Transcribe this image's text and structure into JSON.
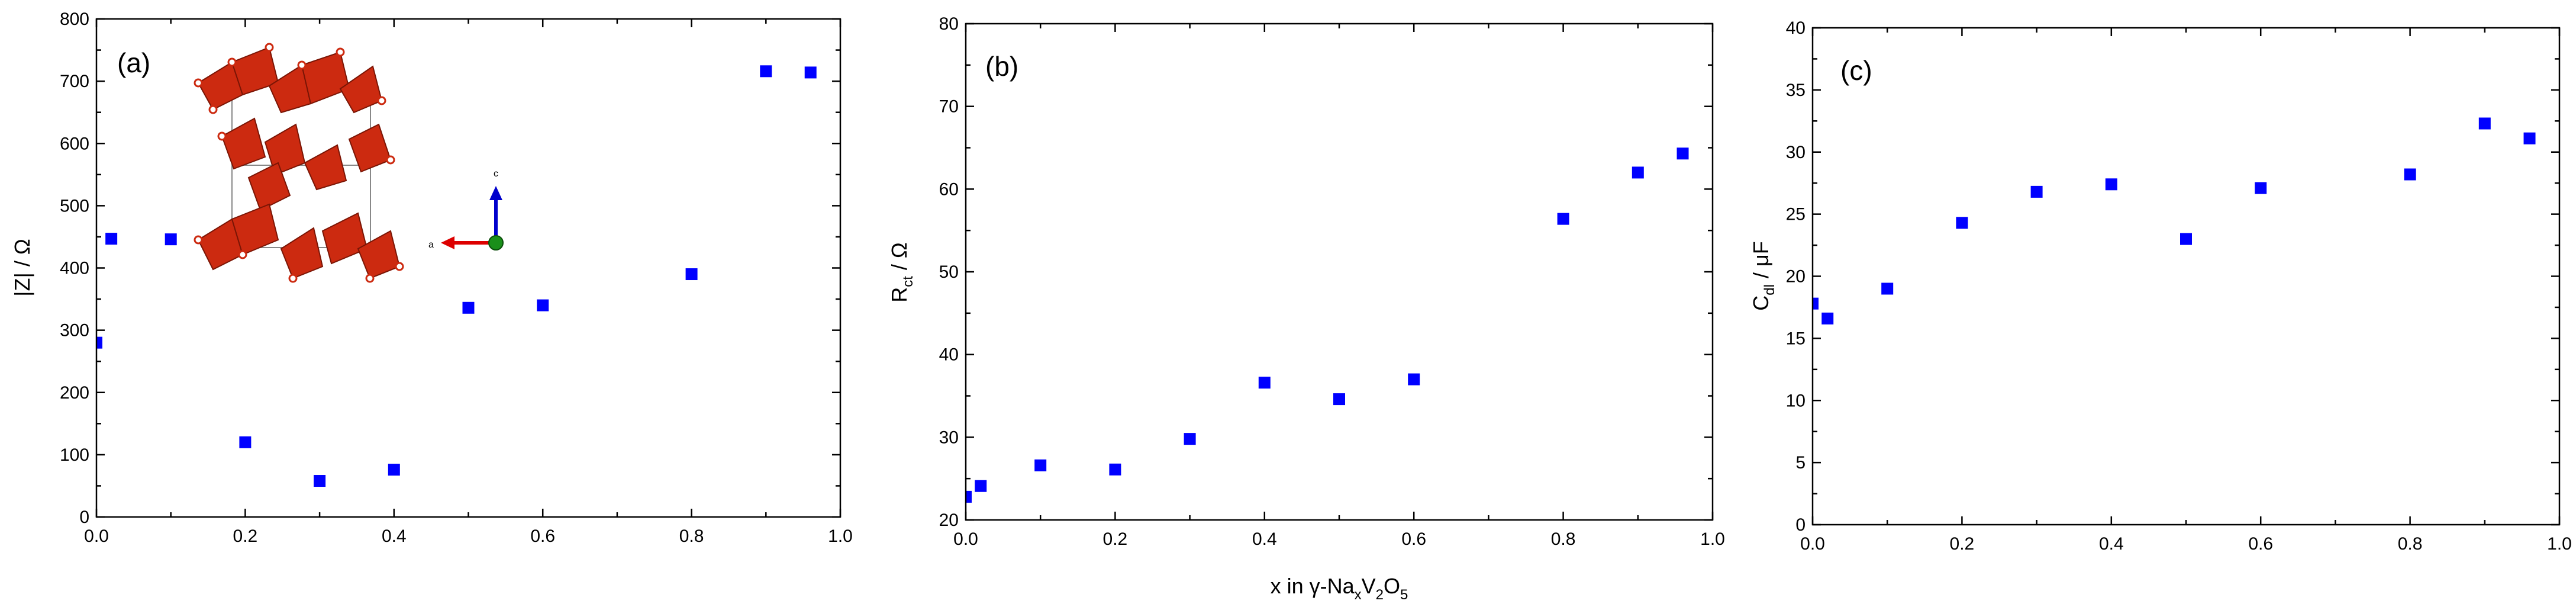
{
  "chart_data": [
    {
      "type": "scatter",
      "panel_label": "(a)",
      "ylabel": "|Z| / Ω",
      "xlabel": "",
      "xlim": [
        0,
        1.0
      ],
      "ylim": [
        0,
        800
      ],
      "xticks": [
        "0.0",
        "0.2",
        "0.4",
        "0.6",
        "0.8",
        "1.0"
      ],
      "yticks": [
        "0",
        "100",
        "200",
        "300",
        "400",
        "500",
        "600",
        "700",
        "800"
      ],
      "marker_color": "#0000ff",
      "inset": "crystal-structure",
      "inset_axis_labels": [
        "a",
        "c"
      ],
      "x": [
        0.0,
        0.02,
        0.1,
        0.2,
        0.3,
        0.4,
        0.5,
        0.6,
        0.8,
        0.9,
        0.96
      ],
      "y": [
        280,
        447,
        446,
        120,
        58,
        76,
        336,
        340,
        390,
        716,
        714
      ]
    },
    {
      "type": "scatter",
      "panel_label": "(b)",
      "ylabel_main": "R",
      "ylabel_sub": "ct",
      "ylabel_tail": " / Ω",
      "xlabel_main": "x in γ-Na",
      "xlabel_sub1": "x",
      "xlabel_mid": "V",
      "xlabel_sub2": "2",
      "xlabel_mid2": "O",
      "xlabel_sub3": "5",
      "xlim": [
        0,
        1.0
      ],
      "ylim": [
        20,
        80
      ],
      "xticks": [
        "0.0",
        "0.2",
        "0.4",
        "0.6",
        "0.8",
        "1.0"
      ],
      "yticks": [
        "20",
        "30",
        "40",
        "50",
        "60",
        "70",
        "80"
      ],
      "marker_color": "#0000ff",
      "x": [
        0.0,
        0.02,
        0.1,
        0.2,
        0.3,
        0.4,
        0.5,
        0.6,
        0.8,
        0.9,
        0.96
      ],
      "y": [
        22.8,
        24.1,
        26.6,
        26.1,
        29.8,
        36.6,
        34.6,
        37.0,
        56.4,
        62.0,
        64.3
      ]
    },
    {
      "type": "scatter",
      "panel_label": "(c)",
      "ylabel_main": "C",
      "ylabel_sub": "dl",
      "ylabel_tail": " / μF",
      "xlabel": "",
      "xlim": [
        0,
        1.0
      ],
      "ylim": [
        0,
        40
      ],
      "xticks": [
        "0.0",
        "0.2",
        "0.4",
        "0.6",
        "0.8",
        "1.0"
      ],
      "yticks": [
        "0",
        "5",
        "10",
        "15",
        "20",
        "25",
        "30",
        "35",
        "40"
      ],
      "marker_color": "#0000ff",
      "x": [
        0.0,
        0.02,
        0.1,
        0.2,
        0.3,
        0.4,
        0.5,
        0.6,
        0.8,
        0.9,
        0.96
      ],
      "y": [
        17.8,
        16.6,
        19.0,
        24.3,
        26.8,
        27.4,
        23.0,
        27.1,
        28.2,
        32.3,
        31.1
      ]
    }
  ]
}
